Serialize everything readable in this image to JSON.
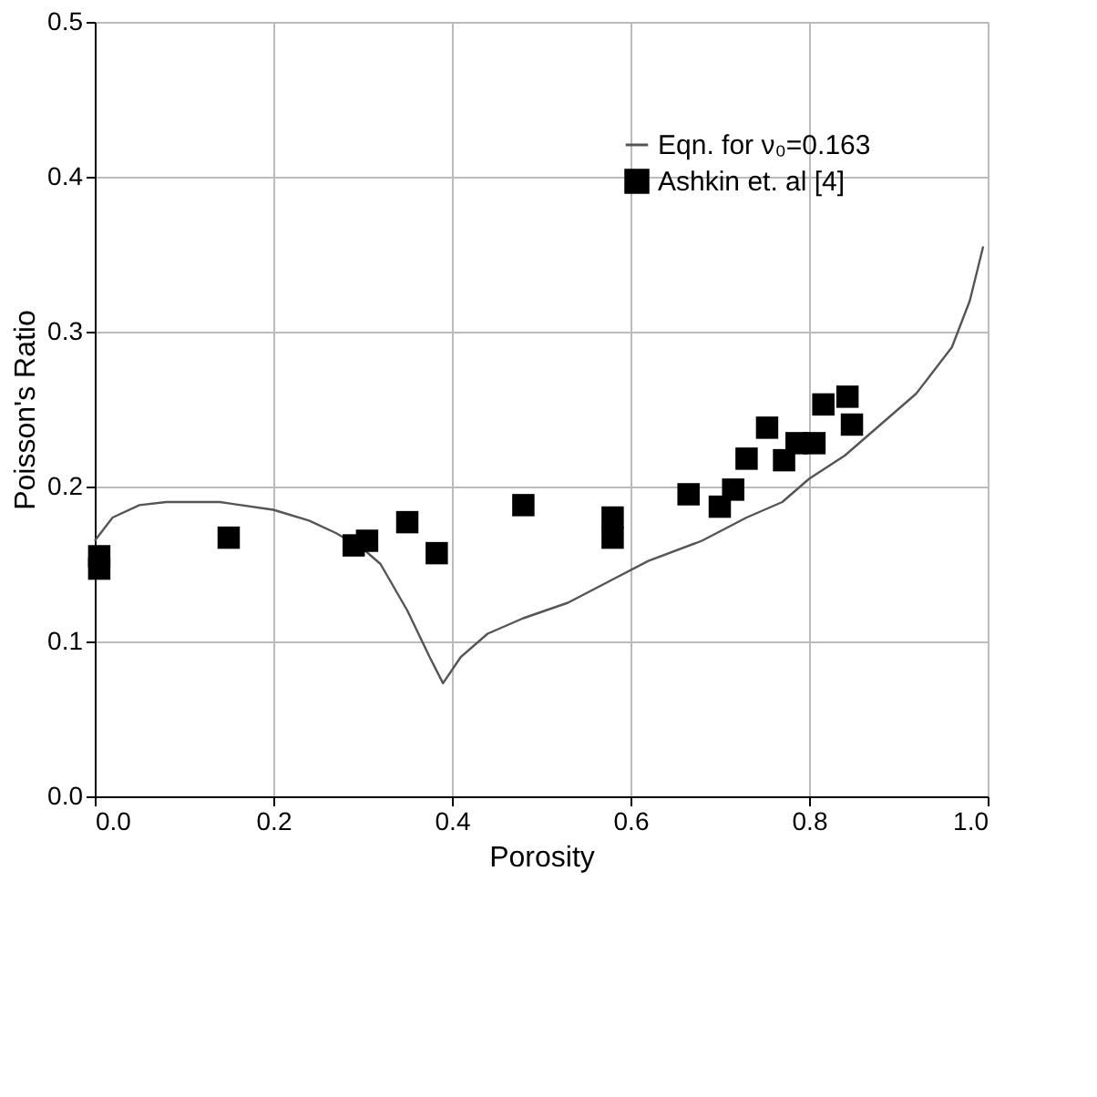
{
  "chart_data": {
    "type": "scatter",
    "xlabel": "Porosity",
    "ylabel": "Poisson's Ratio",
    "xlim": [
      0,
      1
    ],
    "ylim": [
      0,
      0.5
    ],
    "xticks": [
      {
        "value": 0,
        "label": "0.0"
      },
      0.2,
      0.4,
      0.6,
      0.8,
      {
        "value": 1,
        "label": "1.0"
      }
    ],
    "yticks": [
      {
        "value": 0,
        "label": "0.0"
      },
      0.1,
      0.2,
      0.3,
      0.4,
      0.5
    ],
    "grid": true,
    "legend": "top right",
    "series": [
      {
        "name": "Eqn.  for ν₀=0.163",
        "type": "line",
        "color": "#555555",
        "marker": "none",
        "line_style": "solid",
        "x": [
          0,
          0.02,
          0.05,
          0.08,
          0.14,
          0.2,
          0.24,
          0.27,
          0.3,
          0.32,
          0.35,
          0.375,
          0.39,
          0.41,
          0.44,
          0.48,
          0.53,
          0.58,
          0.62,
          0.68,
          0.73,
          0.77,
          0.8,
          0.84,
          0.88,
          0.92,
          0.96,
          0.98,
          0.995
        ],
        "values": [
          0.165,
          0.18,
          0.188,
          0.19,
          0.19,
          0.185,
          0.178,
          0.17,
          0.16,
          0.15,
          0.12,
          0.09,
          0.073,
          0.09,
          0.105,
          0.115,
          0.125,
          0.14,
          0.152,
          0.165,
          0.18,
          0.19,
          0.205,
          0.22,
          0.24,
          0.26,
          0.29,
          0.32,
          0.355
        ]
      },
      {
        "name": "Ashkin et. al [4]",
        "type": "scatter",
        "color": "#000000",
        "marker": "square",
        "x": [
          0.005,
          0.005,
          0.15,
          0.29,
          0.305,
          0.35,
          0.383,
          0.48,
          0.58,
          0.58,
          0.665,
          0.7,
          0.715,
          0.73,
          0.753,
          0.772,
          0.786,
          0.806,
          0.816,
          0.843,
          0.848
        ],
        "values": [
          0.155,
          0.147,
          0.167,
          0.162,
          0.165,
          0.177,
          0.157,
          0.188,
          0.18,
          0.167,
          0.195,
          0.187,
          0.198,
          0.218,
          0.238,
          0.217,
          0.228,
          0.228,
          0.253,
          0.258,
          0.24
        ]
      }
    ]
  }
}
